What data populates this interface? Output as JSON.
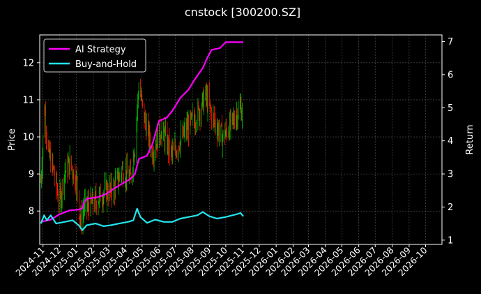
{
  "chart_data": {
    "type": "line",
    "title": "cnstock [300200.SZ]",
    "ylabel_left": "Price",
    "ylabel_right": "Return",
    "x_ticks": [
      "2024-11",
      "2024-12",
      "2025-01",
      "2025-02",
      "2025-03",
      "2025-04",
      "2025-05",
      "2025-06",
      "2025-07",
      "2025-08",
      "2025-09",
      "2025-10",
      "2025-11",
      "2025-12",
      "2026-01",
      "2026-02",
      "2026-03",
      "2026-04",
      "2026-05",
      "2026-06",
      "2026-07",
      "2026-08",
      "2026-09",
      "2026-10"
    ],
    "x_range": [
      "2024-10-26",
      "2026-10-31"
    ],
    "y_left_ticks": [
      8,
      9,
      10,
      11,
      12
    ],
    "y_left_range": [
      7.1,
      12.75
    ],
    "y_right_ticks": [
      1,
      2,
      3,
      4,
      5,
      6,
      7
    ],
    "y_right_range": [
      0.87,
      7.2
    ],
    "grid": true,
    "legend_position": "top-left",
    "legend": [
      {
        "label": "AI Strategy",
        "color": "#ff00ff"
      },
      {
        "label": "Buy-and-Hold",
        "color": "#22e5ee"
      }
    ],
    "price_series": {
      "up_color": "#00c000",
      "down_color": "#ff1a00",
      "keypoints": [
        [
          "2024-10-28",
          8.8
        ],
        [
          "2024-11-04",
          10.8
        ],
        [
          "2024-11-10",
          9.6
        ],
        [
          "2024-11-20",
          9.1
        ],
        [
          "2024-12-01",
          8.2
        ],
        [
          "2024-12-10",
          9.0
        ],
        [
          "2024-12-20",
          9.3
        ],
        [
          "2025-01-02",
          8.8
        ],
        [
          "2025-01-08",
          7.7
        ],
        [
          "2025-01-15",
          8.1
        ],
        [
          "2025-02-01",
          8.2
        ],
        [
          "2025-02-20",
          8.5
        ],
        [
          "2025-03-10",
          8.6
        ],
        [
          "2025-03-25",
          9.1
        ],
        [
          "2025-04-10",
          8.9
        ],
        [
          "2025-04-18",
          9.8
        ],
        [
          "2025-04-25",
          11.4
        ],
        [
          "2025-05-05",
          10.5
        ],
        [
          "2025-05-20",
          9.6
        ],
        [
          "2025-06-05",
          10.2
        ],
        [
          "2025-06-25",
          9.5
        ],
        [
          "2025-07-10",
          9.9
        ],
        [
          "2025-07-25",
          10.3
        ],
        [
          "2025-08-10",
          10.6
        ],
        [
          "2025-08-25",
          11.1
        ],
        [
          "2025-09-10",
          10.4
        ],
        [
          "2025-09-25",
          10.0
        ],
        [
          "2025-10-10",
          10.3
        ],
        [
          "2025-10-20",
          10.6
        ],
        [
          "2025-10-28",
          10.8
        ],
        [
          "2025-11-02",
          10.5
        ]
      ]
    },
    "series": [
      {
        "name": "AI Strategy",
        "axis": "right",
        "color": "#ff00ff",
        "points": [
          [
            "2024-10-28",
            1.55
          ],
          [
            "2024-11-15",
            1.62
          ],
          [
            "2024-12-01",
            1.78
          ],
          [
            "2024-12-20",
            1.9
          ],
          [
            "2025-01-05",
            1.92
          ],
          [
            "2025-01-12",
            1.96
          ],
          [
            "2025-01-14",
            2.1
          ],
          [
            "2025-01-20",
            2.25
          ],
          [
            "2025-02-10",
            2.3
          ],
          [
            "2025-02-25",
            2.4
          ],
          [
            "2025-03-10",
            2.55
          ],
          [
            "2025-03-25",
            2.7
          ],
          [
            "2025-04-10",
            2.85
          ],
          [
            "2025-04-18",
            3.0
          ],
          [
            "2025-04-25",
            3.45
          ],
          [
            "2025-05-10",
            3.55
          ],
          [
            "2025-05-20",
            3.9
          ],
          [
            "2025-06-01",
            4.6
          ],
          [
            "2025-06-15",
            4.7
          ],
          [
            "2025-06-25",
            4.9
          ],
          [
            "2025-07-10",
            5.3
          ],
          [
            "2025-07-25",
            5.55
          ],
          [
            "2025-08-05",
            5.85
          ],
          [
            "2025-08-20",
            6.2
          ],
          [
            "2025-08-28",
            6.5
          ],
          [
            "2025-09-05",
            6.75
          ],
          [
            "2025-09-20",
            6.8
          ],
          [
            "2025-10-01",
            6.98
          ],
          [
            "2025-11-02",
            6.98
          ]
        ]
      },
      {
        "name": "Buy-and-Hold",
        "axis": "right",
        "color": "#22e5ee",
        "points": [
          [
            "2024-10-28",
            1.5
          ],
          [
            "2024-11-03",
            1.75
          ],
          [
            "2024-11-08",
            1.6
          ],
          [
            "2024-11-15",
            1.75
          ],
          [
            "2024-11-25",
            1.5
          ],
          [
            "2024-12-10",
            1.55
          ],
          [
            "2024-12-25",
            1.6
          ],
          [
            "2025-01-05",
            1.45
          ],
          [
            "2025-01-12",
            1.3
          ],
          [
            "2025-01-20",
            1.45
          ],
          [
            "2025-02-05",
            1.5
          ],
          [
            "2025-02-20",
            1.42
          ],
          [
            "2025-03-05",
            1.45
          ],
          [
            "2025-03-20",
            1.5
          ],
          [
            "2025-04-05",
            1.55
          ],
          [
            "2025-04-15",
            1.6
          ],
          [
            "2025-04-22",
            1.95
          ],
          [
            "2025-04-28",
            1.7
          ],
          [
            "2025-05-10",
            1.52
          ],
          [
            "2025-05-25",
            1.62
          ],
          [
            "2025-06-10",
            1.55
          ],
          [
            "2025-06-25",
            1.55
          ],
          [
            "2025-07-10",
            1.65
          ],
          [
            "2025-07-25",
            1.7
          ],
          [
            "2025-08-10",
            1.75
          ],
          [
            "2025-08-20",
            1.85
          ],
          [
            "2025-09-01",
            1.72
          ],
          [
            "2025-09-15",
            1.65
          ],
          [
            "2025-10-01",
            1.7
          ],
          [
            "2025-10-20",
            1.78
          ],
          [
            "2025-10-28",
            1.82
          ],
          [
            "2025-11-02",
            1.72
          ]
        ]
      }
    ]
  }
}
